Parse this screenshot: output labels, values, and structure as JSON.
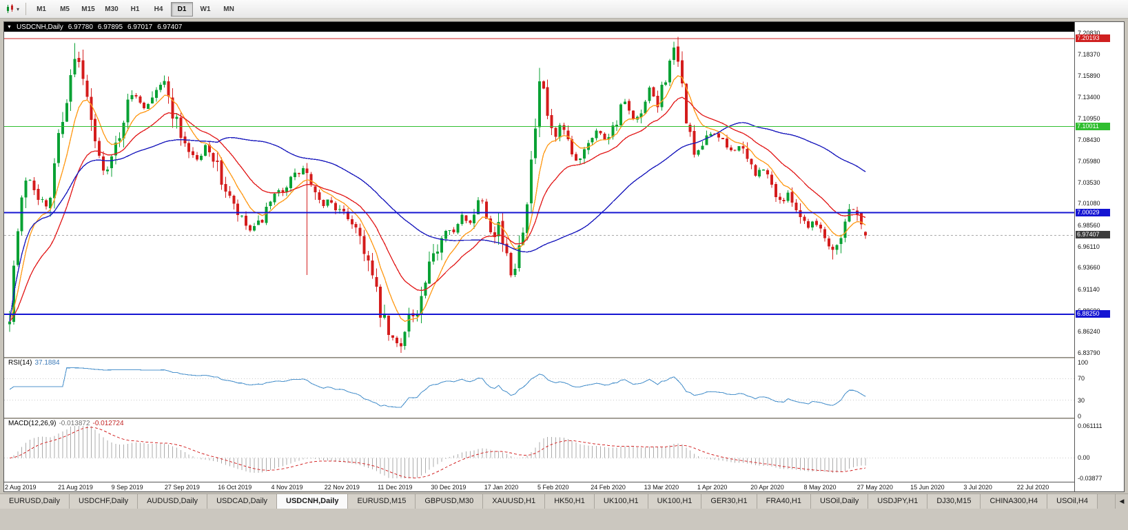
{
  "toolbar": {
    "timeframes": [
      "M1",
      "M5",
      "M15",
      "M30",
      "H1",
      "H4",
      "D1",
      "W1",
      "MN"
    ],
    "active_timeframe": "D1"
  },
  "icons": {
    "toolbar_chart_icon": "candlestick-chart-icon",
    "toolbar_caret": "dropdown-caret-icon",
    "title_menu": "window-menu-triangle-icon",
    "tab_scroll": "scroll-left-arrow-icon",
    "tab_scroll_glyph": "◀",
    "title_menu_glyph": "▼",
    "caret_glyph": "▾"
  },
  "chart": {
    "symbol_title": "USDCNH,Daily",
    "ohlc": {
      "open": "6.97780",
      "high": "6.97895",
      "low": "6.97017",
      "close": "6.97407"
    }
  },
  "price_axis": {
    "max": 7.21,
    "min": 6.833,
    "labels": [
      "7.20830",
      "7.18370",
      "7.15890",
      "7.13400",
      "7.10950",
      "7.08430",
      "7.05980",
      "7.03530",
      "7.01080",
      "6.98560",
      "6.96110",
      "6.93660",
      "6.91140",
      "6.88690",
      "6.86240",
      "6.83790"
    ]
  },
  "hlines": [
    {
      "price": 7.20193,
      "label": "7.20193",
      "color": "#cf2020",
      "width": 1
    },
    {
      "price": 7.10011,
      "label": "7.10011",
      "color": "#2fbe2f",
      "width": 1
    },
    {
      "price": 7.00029,
      "label": "7.00029",
      "color": "#1414d2",
      "width": 2
    },
    {
      "price": 6.8825,
      "label": "6.88250",
      "color": "#1414d2",
      "width": 2
    }
  ],
  "current_price": {
    "value": 6.97407,
    "label": "6.97407",
    "line_color": "#a8a8a8",
    "badge_color": "#3c3c3c"
  },
  "rsi_panel": {
    "name": "RSI(14)",
    "value": "37.1884",
    "line_color": "#4f94cd",
    "levels": [
      {
        "label": "100",
        "value": 100
      },
      {
        "label": "70",
        "value": 70
      },
      {
        "label": "30",
        "value": 30
      },
      {
        "label": "0",
        "value": 0
      }
    ]
  },
  "macd_panel": {
    "name": "MACD(12,26,9)",
    "value_main": "-0.013872",
    "value_signal": "-0.012724",
    "axis_max": 0.061111,
    "axis_min": -0.03877,
    "axis_labels": [
      {
        "label": "0.061111",
        "value": 0.061111
      },
      {
        "label": "0.00",
        "value": 0
      },
      {
        "label": "-0.03877",
        "value": -0.03877
      }
    ],
    "histogram_color": "#ababab",
    "signal_color": "#d42a2a"
  },
  "time_axis": [
    "2 Aug 2019",
    "21 Aug 2019",
    "9 Sep 2019",
    "27 Sep 2019",
    "16 Oct 2019",
    "4 Nov 2019",
    "22 Nov 2019",
    "11 Dec 2019",
    "30 Dec 2019",
    "17 Jan 2020",
    "5 Feb 2020",
    "24 Feb 2020",
    "13 Mar 2020",
    "1 Apr 2020",
    "20 Apr 2020",
    "8 May 2020",
    "27 May 2020",
    "15 Jun 2020",
    "3 Jul 2020",
    "22 Jul 2020"
  ],
  "tabs": {
    "items": [
      "EURUSD,Daily",
      "USDCHF,Daily",
      "AUDUSD,Daily",
      "USDCAD,Daily",
      "USDCNH,Daily",
      "EURUSD,M15",
      "GBPUSD,M30",
      "XAUUSD,H1",
      "HK50,H1",
      "UK100,H1",
      "UK100,H1",
      "GER30,H1",
      "FRA40,H1",
      "USOil,Daily",
      "USDJPY,H1",
      "DJ30,M15",
      "CHINA300,H4",
      "USOil,H4"
    ],
    "active": "USDCNH,Daily"
  },
  "chart_data": {
    "type": "candlestick",
    "symbol": "USDCNH",
    "timeframe": "Daily",
    "bars": 211,
    "date_range": [
      "2 Aug 2019",
      "31 Jul 2020"
    ],
    "up_color": "#09a134",
    "down_color": "#d41c1c",
    "last_bar": {
      "open": 6.9778,
      "high": 6.97895,
      "low": 6.97017,
      "close": 6.97407
    },
    "noise_seed": 7,
    "price_path_keyframes": [
      [
        0.0,
        6.885
      ],
      [
        0.006,
        6.952
      ],
      [
        0.014,
        7.01
      ],
      [
        0.02,
        7.048
      ],
      [
        0.03,
        7.028
      ],
      [
        0.038,
        7.015
      ],
      [
        0.045,
        6.996
      ],
      [
        0.052,
        7.058
      ],
      [
        0.06,
        7.105
      ],
      [
        0.068,
        7.14
      ],
      [
        0.078,
        7.185
      ],
      [
        0.086,
        7.152
      ],
      [
        0.094,
        7.108
      ],
      [
        0.105,
        7.06
      ],
      [
        0.115,
        7.048
      ],
      [
        0.125,
        7.082
      ],
      [
        0.135,
        7.118
      ],
      [
        0.145,
        7.14
      ],
      [
        0.158,
        7.122
      ],
      [
        0.17,
        7.145
      ],
      [
        0.18,
        7.152
      ],
      [
        0.19,
        7.12
      ],
      [
        0.2,
        7.092
      ],
      [
        0.212,
        7.068
      ],
      [
        0.222,
        7.06
      ],
      [
        0.23,
        7.082
      ],
      [
        0.24,
        7.058
      ],
      [
        0.25,
        7.032
      ],
      [
        0.262,
        7.005
      ],
      [
        0.272,
        6.99
      ],
      [
        0.282,
        6.978
      ],
      [
        0.292,
        6.988
      ],
      [
        0.304,
        7.008
      ],
      [
        0.316,
        7.025
      ],
      [
        0.33,
        7.04
      ],
      [
        0.34,
        7.048
      ],
      [
        0.346,
        7.052
      ],
      [
        0.354,
        7.022
      ],
      [
        0.364,
        7.008
      ],
      [
        0.374,
        7.016
      ],
      [
        0.384,
        7.002
      ],
      [
        0.394,
        6.996
      ],
      [
        0.404,
        6.986
      ],
      [
        0.414,
        6.962
      ],
      [
        0.424,
        6.922
      ],
      [
        0.434,
        6.882
      ],
      [
        0.444,
        6.856
      ],
      [
        0.456,
        6.844
      ],
      [
        0.462,
        6.868
      ],
      [
        0.468,
        6.888
      ],
      [
        0.474,
        6.872
      ],
      [
        0.482,
        6.902
      ],
      [
        0.492,
        6.938
      ],
      [
        0.502,
        6.968
      ],
      [
        0.512,
        6.988
      ],
      [
        0.52,
        6.976
      ],
      [
        0.528,
        6.996
      ],
      [
        0.536,
        6.986
      ],
      [
        0.544,
        7.006
      ],
      [
        0.551,
        7.022
      ],
      [
        0.558,
        6.995
      ],
      [
        0.565,
        6.976
      ],
      [
        0.572,
        6.99
      ],
      [
        0.579,
        6.952
      ],
      [
        0.586,
        6.928
      ],
      [
        0.593,
        6.952
      ],
      [
        0.6,
        6.988
      ],
      [
        0.607,
        7.035
      ],
      [
        0.614,
        7.095
      ],
      [
        0.621,
        7.161
      ],
      [
        0.628,
        7.115
      ],
      [
        0.636,
        7.082
      ],
      [
        0.645,
        7.102
      ],
      [
        0.654,
        7.072
      ],
      [
        0.663,
        7.058
      ],
      [
        0.674,
        7.082
      ],
      [
        0.685,
        7.096
      ],
      [
        0.696,
        7.086
      ],
      [
        0.707,
        7.102
      ],
      [
        0.718,
        7.132
      ],
      [
        0.728,
        7.105
      ],
      [
        0.738,
        7.112
      ],
      [
        0.748,
        7.142
      ],
      [
        0.757,
        7.125
      ],
      [
        0.766,
        7.158
      ],
      [
        0.775,
        7.192
      ],
      [
        0.784,
        7.155
      ],
      [
        0.793,
        7.095
      ],
      [
        0.802,
        7.065
      ],
      [
        0.812,
        7.082
      ],
      [
        0.822,
        7.096
      ],
      [
        0.832,
        7.082
      ],
      [
        0.842,
        7.072
      ],
      [
        0.852,
        7.078
      ],
      [
        0.862,
        7.06
      ],
      [
        0.872,
        7.045
      ],
      [
        0.882,
        7.05
      ],
      [
        0.892,
        7.028
      ],
      [
        0.902,
        7.012
      ],
      [
        0.912,
        7.022
      ],
      [
        0.922,
        7.0
      ],
      [
        0.932,
        6.985
      ],
      [
        0.942,
        6.992
      ],
      [
        0.952,
        6.972
      ],
      [
        0.962,
        6.958
      ],
      [
        0.972,
        6.978
      ],
      [
        0.98,
        7.002
      ],
      [
        0.988,
        7.008
      ],
      [
        0.994,
        6.988
      ],
      [
        1.0,
        6.974
      ]
    ],
    "special_wicks": [
      {
        "f": 0.078,
        "high": 7.197
      },
      {
        "f": 0.346,
        "low": 6.928
      },
      {
        "f": 0.456,
        "low": 6.8379
      },
      {
        "f": 0.621,
        "high": 7.168
      },
      {
        "f": 0.775,
        "high": 7.1985
      },
      {
        "f": 0.962,
        "low": 6.9462
      }
    ],
    "moving_averages": [
      {
        "type": "ema",
        "period": 8,
        "color": "#ff9d1e"
      },
      {
        "type": "ema",
        "period": 20,
        "color": "#e32222"
      },
      {
        "type": "sma",
        "period": 52,
        "color": "#1b1bbd"
      }
    ],
    "indicators": [
      {
        "name": "RSI",
        "period": 14,
        "last_value": 37.1884
      },
      {
        "name": "MACD",
        "fast": 12,
        "slow": 26,
        "signal": 9,
        "last_main": -0.013872,
        "last_signal": -0.012724
      }
    ]
  }
}
